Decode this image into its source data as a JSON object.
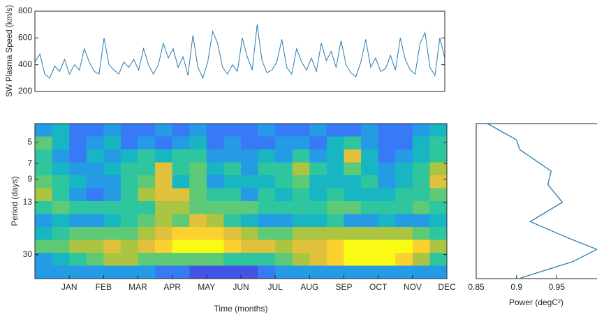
{
  "chart_data": [
    {
      "type": "line",
      "ylabel": "SW Plasma Speed (km/s)",
      "ylim": [
        200,
        800
      ],
      "yticks": [
        200,
        400,
        600,
        800
      ],
      "color": "#2a7ab0",
      "values": [
        420,
        480,
        330,
        300,
        390,
        350,
        440,
        330,
        400,
        360,
        520,
        420,
        350,
        330,
        600,
        400,
        360,
        330,
        420,
        380,
        440,
        360,
        520,
        400,
        330,
        400,
        560,
        450,
        520,
        380,
        460,
        320,
        620,
        380,
        300,
        420,
        650,
        560,
        380,
        330,
        400,
        350,
        600,
        460,
        360,
        700,
        430,
        340,
        360,
        420,
        590,
        380,
        330,
        520,
        420,
        360,
        450,
        350,
        560,
        430,
        500,
        380,
        580,
        400,
        340,
        310,
        420,
        590,
        380,
        450,
        350,
        370,
        470,
        360,
        600,
        440,
        360,
        330,
        560,
        640,
        380,
        320,
        600,
        450
      ]
    },
    {
      "type": "heatmap",
      "xlabel": "Time (months)",
      "ylabel": "Period (days)",
      "categories": [
        "JAN",
        "FEB",
        "MAR",
        "APR",
        "MAY",
        "JUN",
        "JUL",
        "AUG",
        "SEP",
        "OCT",
        "NOV",
        "DEC"
      ],
      "ylim": [
        3.7,
        44
      ],
      "yticks": [
        5,
        7,
        9,
        13,
        30
      ],
      "log_y": true,
      "zlim": [
        0,
        10
      ],
      "colors": [
        "#3e26a8",
        "#4367fd",
        "#2797eb",
        "#13beb8",
        "#48cb86",
        "#b6c33a",
        "#fcbf3b",
        "#f9fb15"
      ],
      "z": [
        [
          3,
          4,
          2,
          2,
          3,
          2,
          2,
          3,
          2,
          3,
          2,
          2,
          2,
          3,
          2,
          2,
          3,
          2,
          2,
          3,
          2,
          2,
          3,
          4
        ],
        [
          6,
          4,
          2,
          3,
          4,
          2,
          3,
          2,
          3,
          4,
          2,
          3,
          2,
          2,
          3,
          3,
          2,
          4,
          5,
          3,
          2,
          2,
          4,
          5
        ],
        [
          5,
          3,
          2,
          4,
          3,
          4,
          5,
          4,
          5,
          5,
          3,
          3,
          3,
          4,
          3,
          5,
          3,
          4,
          8,
          4,
          2,
          3,
          4,
          5
        ],
        [
          5,
          4,
          3,
          3,
          4,
          5,
          5,
          8,
          5,
          6,
          4,
          5,
          3,
          5,
          5,
          7,
          5,
          4,
          6,
          4,
          3,
          4,
          5,
          7
        ],
        [
          6,
          5,
          4,
          3,
          3,
          5,
          6,
          8,
          4,
          6,
          3,
          4,
          4,
          4,
          5,
          6,
          4,
          4,
          4,
          5,
          3,
          4,
          5,
          8
        ],
        [
          7,
          5,
          3,
          2,
          3,
          5,
          7,
          8,
          8,
          6,
          5,
          5,
          3,
          5,
          4,
          5,
          4,
          5,
          4,
          4,
          4,
          5,
          5,
          6
        ],
        [
          5,
          6,
          5,
          5,
          5,
          5,
          5,
          7,
          7,
          6,
          6,
          6,
          6,
          5,
          5,
          5,
          5,
          6,
          6,
          5,
          5,
          5,
          6,
          5
        ],
        [
          3,
          4,
          3,
          3,
          4,
          5,
          6,
          7,
          6,
          8,
          7,
          5,
          4,
          3,
          3,
          4,
          4,
          5,
          3,
          3,
          4,
          3,
          3,
          4
        ],
        [
          4,
          5,
          6,
          6,
          6,
          6,
          7,
          8,
          9,
          9,
          9,
          8,
          7,
          6,
          6,
          7,
          7,
          7,
          7,
          7,
          7,
          7,
          6,
          5
        ],
        [
          6,
          6,
          7,
          7,
          8,
          7,
          8,
          9,
          10,
          10,
          10,
          9,
          8,
          8,
          7,
          8,
          8,
          9,
          10,
          10,
          10,
          10,
          9,
          7
        ],
        [
          3,
          4,
          5,
          6,
          7,
          7,
          6,
          6,
          6,
          6,
          6,
          5,
          5,
          5,
          6,
          7,
          8,
          9,
          10,
          10,
          10,
          9,
          7,
          5
        ],
        [
          3,
          3,
          3,
          3,
          3,
          3,
          3,
          2,
          2,
          1,
          1,
          1,
          1,
          2,
          3,
          3,
          3,
          3,
          3,
          3,
          3,
          3,
          3,
          3
        ]
      ]
    },
    {
      "type": "profile",
      "xlabel": "Power (degC²)",
      "xlim": [
        0.85,
        1.0
      ],
      "xticks": [
        0.85,
        0.9,
        0.95
      ],
      "ylim": [
        3.7,
        44
      ],
      "log_y": true,
      "color": "#2a7ab0",
      "values": [
        0.864,
        0.9,
        0.904,
        0.943,
        0.939,
        0.957,
        0.917,
        0.961,
        1.0,
        0.97,
        0.905
      ],
      "y": [
        3.7,
        4.8,
        5.6,
        7.9,
        9.8,
        13.0,
        17.7,
        22.6,
        27.6,
        33.5,
        43.6
      ]
    }
  ]
}
